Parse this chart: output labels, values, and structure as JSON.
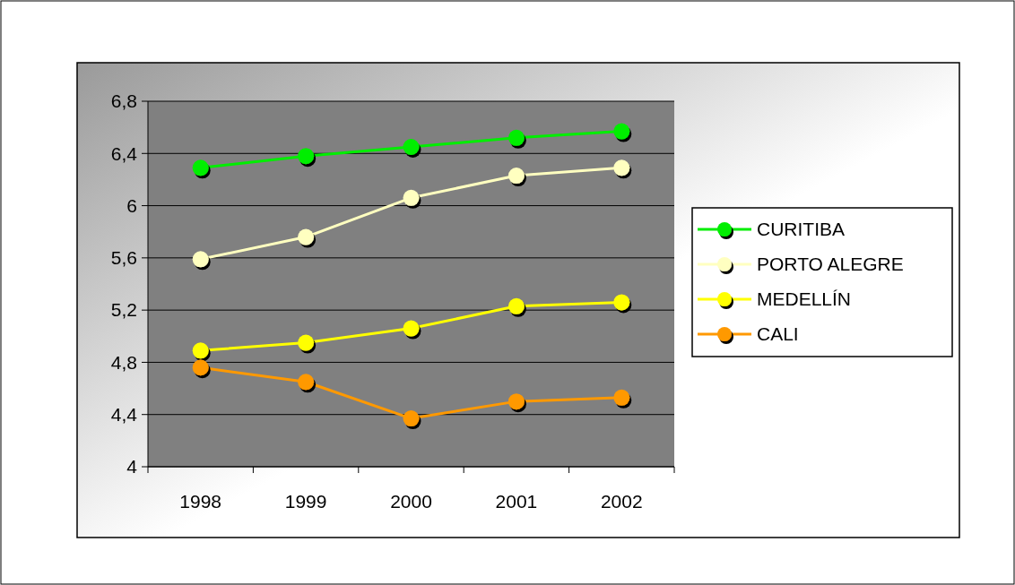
{
  "chart_data": {
    "type": "line",
    "categories": [
      "1998",
      "1999",
      "2000",
      "2001",
      "2002"
    ],
    "series": [
      {
        "name": "CURITIBA",
        "color": "#00ee00",
        "values": [
          6.29,
          6.38,
          6.45,
          6.52,
          6.57
        ]
      },
      {
        "name": "PORTO ALEGRE",
        "color": "#ffffc0",
        "values": [
          5.59,
          5.76,
          6.06,
          6.23,
          6.29
        ]
      },
      {
        "name": "MEDELLÍN",
        "color": "#ffff00",
        "values": [
          4.89,
          4.95,
          5.06,
          5.23,
          5.26
        ]
      },
      {
        "name": "CALI",
        "color": "#ff9900",
        "values": [
          4.76,
          4.65,
          4.37,
          4.5,
          4.53
        ]
      }
    ],
    "ylim": [
      4,
      6.8
    ],
    "yticks": [
      4,
      {
        "value": 4.4,
        "label": "4,4"
      },
      {
        "value": 4.8,
        "label": "4,8"
      },
      {
        "value": 5.2,
        "label": "5,2"
      },
      {
        "value": 5.6,
        "label": "5,6"
      },
      6,
      {
        "value": 6.4,
        "label": "6,4"
      },
      {
        "value": 6.8,
        "label": "6,8"
      }
    ],
    "grid": "y",
    "legend": "right",
    "marker": "circle",
    "line_style": "solid"
  }
}
